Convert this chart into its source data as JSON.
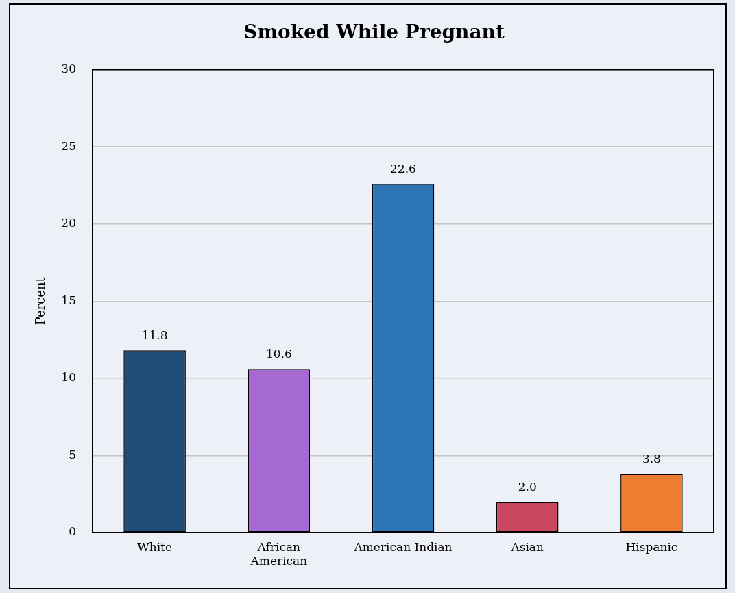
{
  "chart_data": {
    "type": "bar",
    "title": "Smoked While Pregnant",
    "ylabel": "Percent",
    "categories": [
      "White",
      "African\nAmerican",
      "American Indian",
      "Asian",
      "Hispanic"
    ],
    "values": [
      11.8,
      10.6,
      22.6,
      2.0,
      3.8
    ],
    "colors": [
      "#1f4e79",
      "#a569d1",
      "#2e75b6",
      "#c9465e",
      "#ed7d31"
    ],
    "value_labels": [
      "11.8",
      "10.6",
      "22.6",
      "2.0",
      "3.8"
    ],
    "ylim": [
      0,
      30
    ],
    "yticks": [
      0,
      5,
      10,
      15,
      20,
      25,
      30
    ],
    "grid": "y"
  }
}
